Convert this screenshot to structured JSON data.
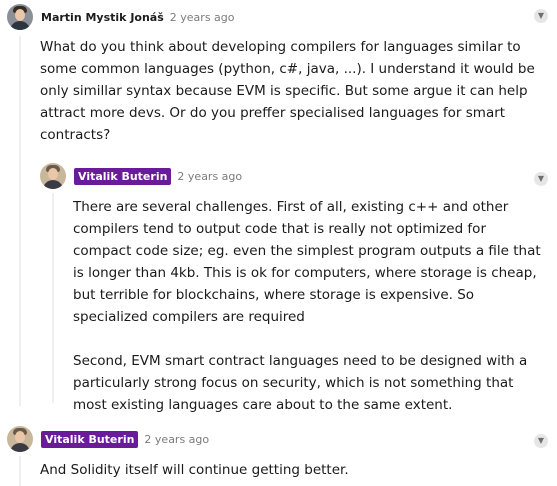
{
  "comments": [
    {
      "author": "Martin Mystik Jonáš",
      "time": "2 years ago",
      "paragraphs": [
        "What do you think about developing compilers for languages similar to some common languages (python, c#, java, ...). I understand it would be only simillar syntax because EVM is specific. But some argue it can help attract more devs. Or do you preffer specialised languages for smart contracts?"
      ]
    },
    {
      "author": "Vitalik Buterin",
      "time": "2 years ago",
      "paragraphs": [
        "There are several challenges. First of all, existing c++ and other compilers tend to output code that is really not optimized for compact code size; eg. even the simplest program outputs a file that is longer than 4kb. This is ok for computers, where storage is cheap, but terrible for blockchains, where storage is expensive. So specialized compilers are required",
        "Second, EVM smart contract languages need to be designed with a particularly strong focus on security, which is not something that most existing languages care about to the same extent."
      ]
    },
    {
      "author": "Vitalik Buterin",
      "time": "2 years ago",
      "paragraphs": [
        "And Solidity itself will continue getting better."
      ]
    }
  ],
  "icons": {
    "collapse": "chevron-down-icon",
    "avatar": "user-avatar"
  },
  "colors": {
    "op_badge": "#6a1b9a",
    "meta_text": "#7c7c7c",
    "thread_line": "#edeff1"
  }
}
